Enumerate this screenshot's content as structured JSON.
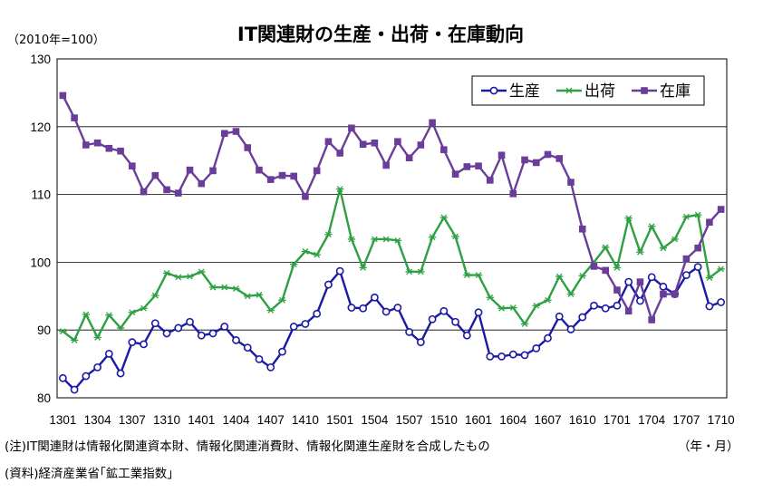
{
  "chart_data": {
    "type": "line",
    "title": "IT関連財の生産・出荷・在庫動向",
    "unit_label": "（2010年=100）",
    "x_unit_label": "（年・月）",
    "ylim": [
      80,
      130
    ],
    "y_ticks": [
      80,
      90,
      100,
      110,
      120,
      130
    ],
    "x_tick_labels": [
      "1301",
      "1304",
      "1307",
      "1310",
      "1401",
      "1404",
      "1407",
      "1410",
      "1501",
      "1504",
      "1507",
      "1510",
      "1601",
      "1604",
      "1607",
      "1610",
      "1701",
      "1704",
      "1707",
      "1710"
    ],
    "x": [
      "1301",
      "1302",
      "1303",
      "1304",
      "1305",
      "1306",
      "1307",
      "1308",
      "1309",
      "1310",
      "1311",
      "1312",
      "1401",
      "1402",
      "1403",
      "1404",
      "1405",
      "1406",
      "1407",
      "1408",
      "1409",
      "1410",
      "1411",
      "1412",
      "1501",
      "1502",
      "1503",
      "1504",
      "1505",
      "1506",
      "1507",
      "1508",
      "1509",
      "1510",
      "1511",
      "1512",
      "1601",
      "1602",
      "1603",
      "1604",
      "1605",
      "1606",
      "1607",
      "1608",
      "1609",
      "1610",
      "1611",
      "1612",
      "1701",
      "1702",
      "1703",
      "1704",
      "1705",
      "1706",
      "1707",
      "1708",
      "1709",
      "1710"
    ],
    "grid": true,
    "legend_position": "top-right",
    "series": [
      {
        "name": "生産",
        "color": "#1a1aa6",
        "marker": "circle",
        "values": [
          82.9,
          81.2,
          83.2,
          84.5,
          86.5,
          83.6,
          88.2,
          87.9,
          91.0,
          89.5,
          90.3,
          91.2,
          89.2,
          89.5,
          90.5,
          88.5,
          87.4,
          85.7,
          84.5,
          86.8,
          90.5,
          90.9,
          92.4,
          96.7,
          98.7,
          93.3,
          93.2,
          94.8,
          92.7,
          93.3,
          89.7,
          88.2,
          91.6,
          92.8,
          91.2,
          89.2,
          92.6,
          86.1,
          86.1,
          86.4,
          86.3,
          87.3,
          88.8,
          92.0,
          90.1,
          91.9,
          93.6,
          93.2,
          93.6,
          97.1,
          94.3,
          97.8,
          96.4,
          95.3,
          98.1,
          99.3,
          93.5,
          94.1
        ]
      },
      {
        "name": "出荷",
        "color": "#2ea043",
        "marker": "asterisk",
        "values": [
          89.8,
          88.5,
          92.3,
          88.9,
          92.2,
          90.3,
          92.6,
          93.2,
          95.1,
          98.4,
          97.8,
          97.9,
          98.6,
          96.3,
          96.3,
          96.1,
          95.0,
          95.2,
          92.9,
          94.4,
          99.7,
          101.6,
          101.1,
          104.1,
          110.8,
          103.4,
          99.2,
          103.4,
          103.4,
          103.2,
          98.6,
          98.6,
          103.7,
          106.6,
          103.8,
          98.1,
          98.1,
          94.8,
          93.2,
          93.3,
          90.9,
          93.6,
          94.4,
          97.9,
          95.3,
          98.0,
          100.0,
          102.2,
          99.2,
          106.5,
          101.5,
          105.3,
          102.1,
          103.4,
          106.7,
          107.0,
          97.7,
          99.0
        ]
      },
      {
        "name": "在庫",
        "color": "#6a3d9a",
        "marker": "square",
        "values": [
          124.6,
          121.3,
          117.3,
          117.6,
          116.8,
          116.4,
          114.2,
          110.4,
          112.8,
          110.7,
          110.2,
          113.6,
          111.6,
          113.5,
          119.0,
          119.3,
          116.9,
          113.6,
          112.2,
          112.8,
          112.7,
          109.7,
          113.5,
          117.8,
          116.1,
          119.8,
          117.4,
          117.6,
          114.3,
          117.8,
          115.4,
          117.3,
          120.6,
          116.6,
          113.0,
          114.1,
          114.2,
          112.1,
          115.8,
          110.1,
          115.1,
          114.7,
          115.9,
          115.3,
          111.8,
          104.9,
          99.4,
          98.8,
          95.9,
          92.8,
          97.1,
          91.5,
          95.3,
          95.3,
          100.5,
          102.1,
          105.9,
          107.8
        ]
      }
    ]
  },
  "notes": [
    "(注)IT関連財は情報化関連資本財、情報化関連消費財、情報化関連生産財を合成したもの",
    "(資料)経済産業省｢鉱工業指数｣"
  ]
}
